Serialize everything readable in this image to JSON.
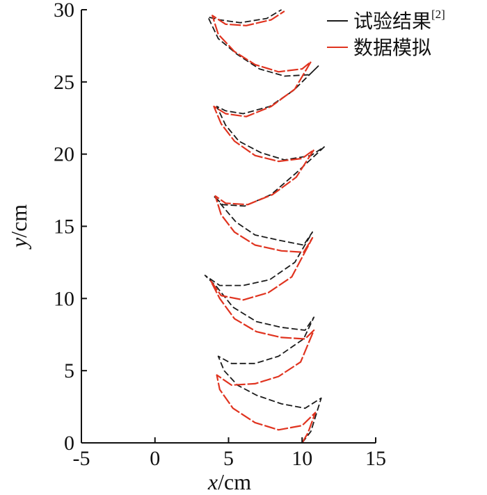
{
  "chart_data": {
    "type": "line",
    "xlabel": {
      "var": "x",
      "unit": "/cm"
    },
    "ylabel": {
      "var": "y",
      "unit": "/cm"
    },
    "xlim": [
      -5,
      15
    ],
    "ylim": [
      0,
      30
    ],
    "x_ticks": [
      -5,
      0,
      5,
      10,
      15
    ],
    "y_ticks": [
      0,
      5,
      10,
      15,
      20,
      25,
      30
    ],
    "legend": {
      "position": "top-right"
    },
    "series": [
      {
        "name": "试验结果",
        "name_sup": "[2]",
        "color": "#1a1a1a",
        "dash": true,
        "points": [
          [
            10.0,
            0.0
          ],
          [
            10.6,
            0.8
          ],
          [
            11.3,
            3.1
          ],
          [
            10.2,
            2.4
          ],
          [
            8.6,
            2.7
          ],
          [
            6.9,
            3.3
          ],
          [
            5.6,
            4.0
          ],
          [
            4.7,
            5.0
          ],
          [
            4.3,
            6.0
          ],
          [
            5.2,
            5.5
          ],
          [
            6.8,
            5.5
          ],
          [
            8.4,
            6.0
          ],
          [
            10.1,
            7.2
          ],
          [
            10.8,
            8.7
          ],
          [
            10.2,
            7.8
          ],
          [
            8.6,
            8.0
          ],
          [
            6.9,
            8.4
          ],
          [
            5.3,
            9.4
          ],
          [
            4.2,
            10.8
          ],
          [
            3.4,
            11.6
          ],
          [
            4.4,
            10.9
          ],
          [
            6.0,
            10.9
          ],
          [
            7.8,
            11.3
          ],
          [
            9.5,
            12.5
          ],
          [
            10.7,
            14.6
          ],
          [
            10.1,
            13.7
          ],
          [
            8.6,
            14.0
          ],
          [
            6.8,
            14.4
          ],
          [
            5.5,
            15.3
          ],
          [
            4.5,
            16.5
          ],
          [
            4.0,
            17.1
          ],
          [
            4.6,
            16.5
          ],
          [
            6.1,
            16.4
          ],
          [
            7.9,
            17.2
          ],
          [
            9.6,
            18.7
          ],
          [
            11.5,
            20.5
          ],
          [
            10.6,
            19.9
          ],
          [
            8.8,
            19.6
          ],
          [
            7.2,
            20.1
          ],
          [
            5.7,
            20.9
          ],
          [
            4.8,
            22.0
          ],
          [
            4.2,
            23.3
          ],
          [
            4.8,
            23.0
          ],
          [
            6.0,
            22.8
          ],
          [
            7.8,
            23.3
          ],
          [
            9.4,
            24.4
          ],
          [
            11.1,
            26.1
          ],
          [
            10.5,
            25.5
          ],
          [
            8.8,
            25.4
          ],
          [
            7.1,
            25.9
          ],
          [
            5.6,
            26.9
          ],
          [
            4.3,
            28.0
          ],
          [
            3.6,
            29.5
          ],
          [
            4.4,
            29.3
          ],
          [
            5.8,
            29.1
          ],
          [
            7.6,
            29.4
          ],
          [
            8.6,
            30.0
          ]
        ]
      },
      {
        "name": "数据模拟",
        "name_sup": "",
        "color": "#e0331f",
        "dash": true,
        "points": [
          [
            10.0,
            0.0
          ],
          [
            10.4,
            0.7
          ],
          [
            10.9,
            2.1
          ],
          [
            10.0,
            1.2
          ],
          [
            8.4,
            0.9
          ],
          [
            6.8,
            1.4
          ],
          [
            5.3,
            2.4
          ],
          [
            4.4,
            3.7
          ],
          [
            4.2,
            4.7
          ],
          [
            5.2,
            4.0
          ],
          [
            6.8,
            4.1
          ],
          [
            8.4,
            4.6
          ],
          [
            9.9,
            5.6
          ],
          [
            10.8,
            7.8
          ],
          [
            10.2,
            7.2
          ],
          [
            8.6,
            7.3
          ],
          [
            6.9,
            7.7
          ],
          [
            5.4,
            8.6
          ],
          [
            4.4,
            10.0
          ],
          [
            3.8,
            11.2
          ],
          [
            4.5,
            10.2
          ],
          [
            6.0,
            9.9
          ],
          [
            7.7,
            10.4
          ],
          [
            9.3,
            11.5
          ],
          [
            10.7,
            14.2
          ],
          [
            10.1,
            13.2
          ],
          [
            8.6,
            13.3
          ],
          [
            6.8,
            13.7
          ],
          [
            5.4,
            14.6
          ],
          [
            4.5,
            15.8
          ],
          [
            4.1,
            17.1
          ],
          [
            4.8,
            16.6
          ],
          [
            6.3,
            16.5
          ],
          [
            8.0,
            17.2
          ],
          [
            9.6,
            18.4
          ],
          [
            10.8,
            20.3
          ],
          [
            10.0,
            19.7
          ],
          [
            8.4,
            19.5
          ],
          [
            6.8,
            19.9
          ],
          [
            5.4,
            20.9
          ],
          [
            4.5,
            22.1
          ],
          [
            4.0,
            23.3
          ],
          [
            4.8,
            22.8
          ],
          [
            6.2,
            22.6
          ],
          [
            7.9,
            23.3
          ],
          [
            9.5,
            24.5
          ],
          [
            10.6,
            26.4
          ],
          [
            10.0,
            25.9
          ],
          [
            8.4,
            25.7
          ],
          [
            6.8,
            26.2
          ],
          [
            5.4,
            27.1
          ],
          [
            4.3,
            28.3
          ],
          [
            3.9,
            29.6
          ],
          [
            4.8,
            29.0
          ],
          [
            6.2,
            28.9
          ],
          [
            7.9,
            29.3
          ],
          [
            8.8,
            29.9
          ]
        ]
      }
    ]
  }
}
